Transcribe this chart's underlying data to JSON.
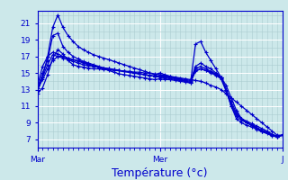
{
  "bg_color": "#cce8ea",
  "plot_bg_color": "#cce8ea",
  "grid_color_major": "#ffffff",
  "grid_color_minor": "#aacdd0",
  "line_color": "#0000cc",
  "marker": "+",
  "marker_size": 3.5,
  "line_width": 0.9,
  "xlabel": "Température (°c)",
  "xlabel_fontsize": 9,
  "xlabel_color": "#0000cc",
  "yticks": [
    7,
    9,
    11,
    13,
    15,
    17,
    19,
    21
  ],
  "ylim": [
    6.0,
    22.5
  ],
  "xtick_labels": [
    "Mar",
    "Mer",
    "J"
  ],
  "xtick_positions": [
    0,
    24,
    48
  ],
  "xlim": [
    0,
    48
  ],
  "series": [
    [
      12.5,
      13.2,
      14.8,
      16.8,
      17.8,
      17.3,
      16.5,
      16.0,
      15.8,
      15.7,
      15.6,
      15.5,
      15.5,
      15.4,
      15.4,
      15.3,
      15.3,
      15.2,
      15.2,
      15.1,
      15.1,
      15.0,
      15.0,
      14.9,
      14.8,
      14.7,
      14.6,
      14.5,
      14.4,
      14.3,
      14.2,
      14.1,
      14.0,
      13.8,
      13.5,
      13.3,
      13.0,
      12.5,
      12.0,
      11.5,
      11.0,
      10.5,
      10.0,
      9.5,
      9.0,
      8.5,
      8.0,
      7.5,
      7.5
    ],
    [
      13.0,
      14.5,
      17.0,
      20.5,
      22.0,
      20.5,
      19.5,
      18.8,
      18.2,
      17.8,
      17.5,
      17.2,
      17.0,
      16.8,
      16.6,
      16.4,
      16.2,
      16.0,
      15.8,
      15.6,
      15.4,
      15.2,
      15.0,
      14.8,
      15.0,
      14.8,
      14.6,
      14.4,
      14.2,
      14.0,
      13.8,
      18.5,
      18.8,
      17.5,
      16.5,
      15.5,
      14.5,
      13.5,
      12.0,
      10.5,
      9.5,
      9.0,
      8.7,
      8.3,
      8.0,
      7.8,
      7.5,
      7.3,
      7.5
    ],
    [
      13.2,
      15.0,
      16.5,
      19.5,
      19.8,
      18.2,
      17.5,
      17.0,
      16.7,
      16.4,
      16.2,
      16.0,
      15.8,
      15.6,
      15.5,
      15.4,
      15.3,
      15.2,
      15.1,
      15.0,
      14.9,
      14.8,
      14.7,
      14.6,
      14.7,
      14.6,
      14.5,
      14.4,
      14.3,
      14.2,
      14.1,
      15.8,
      16.2,
      15.8,
      15.5,
      15.0,
      14.5,
      13.0,
      11.0,
      9.5,
      9.0,
      8.7,
      8.5,
      8.2,
      7.9,
      7.7,
      7.4,
      7.3,
      7.5
    ],
    [
      13.5,
      15.8,
      17.0,
      17.5,
      17.3,
      17.0,
      16.8,
      16.6,
      16.4,
      16.2,
      16.0,
      15.8,
      15.7,
      15.6,
      15.5,
      15.4,
      15.3,
      15.2,
      15.1,
      15.0,
      14.9,
      14.8,
      14.7,
      14.6,
      14.5,
      14.4,
      14.3,
      14.2,
      14.1,
      14.0,
      13.9,
      15.2,
      15.5,
      15.3,
      15.0,
      14.7,
      14.3,
      12.8,
      11.0,
      9.8,
      9.3,
      9.0,
      8.7,
      8.4,
      8.1,
      7.9,
      7.5,
      7.3,
      7.5
    ],
    [
      12.8,
      14.5,
      16.0,
      17.2,
      17.0,
      16.8,
      16.6,
      16.4,
      16.2,
      16.0,
      15.9,
      15.8,
      15.7,
      15.6,
      15.5,
      15.4,
      15.3,
      15.2,
      15.1,
      15.0,
      14.9,
      14.8,
      14.7,
      14.6,
      14.6,
      14.5,
      14.4,
      14.3,
      14.2,
      14.1,
      14.0,
      15.5,
      15.8,
      15.5,
      15.2,
      14.9,
      14.5,
      13.0,
      11.2,
      10.0,
      9.5,
      9.2,
      8.9,
      8.6,
      8.3,
      8.0,
      7.6,
      7.4,
      7.5
    ],
    [
      13.0,
      14.2,
      15.5,
      16.5,
      17.0,
      17.0,
      16.8,
      16.6,
      16.5,
      16.3,
      16.1,
      15.9,
      15.7,
      15.5,
      15.3,
      15.1,
      14.9,
      14.8,
      14.7,
      14.6,
      14.5,
      14.4,
      14.3,
      14.2,
      14.3,
      14.2,
      14.2,
      14.1,
      14.0,
      13.9,
      13.8,
      15.3,
      15.5,
      15.3,
      15.1,
      14.8,
      14.4,
      13.0,
      11.5,
      10.2,
      9.5,
      9.0,
      8.7,
      8.4,
      8.0,
      7.8,
      7.5,
      7.3,
      7.5
    ]
  ]
}
